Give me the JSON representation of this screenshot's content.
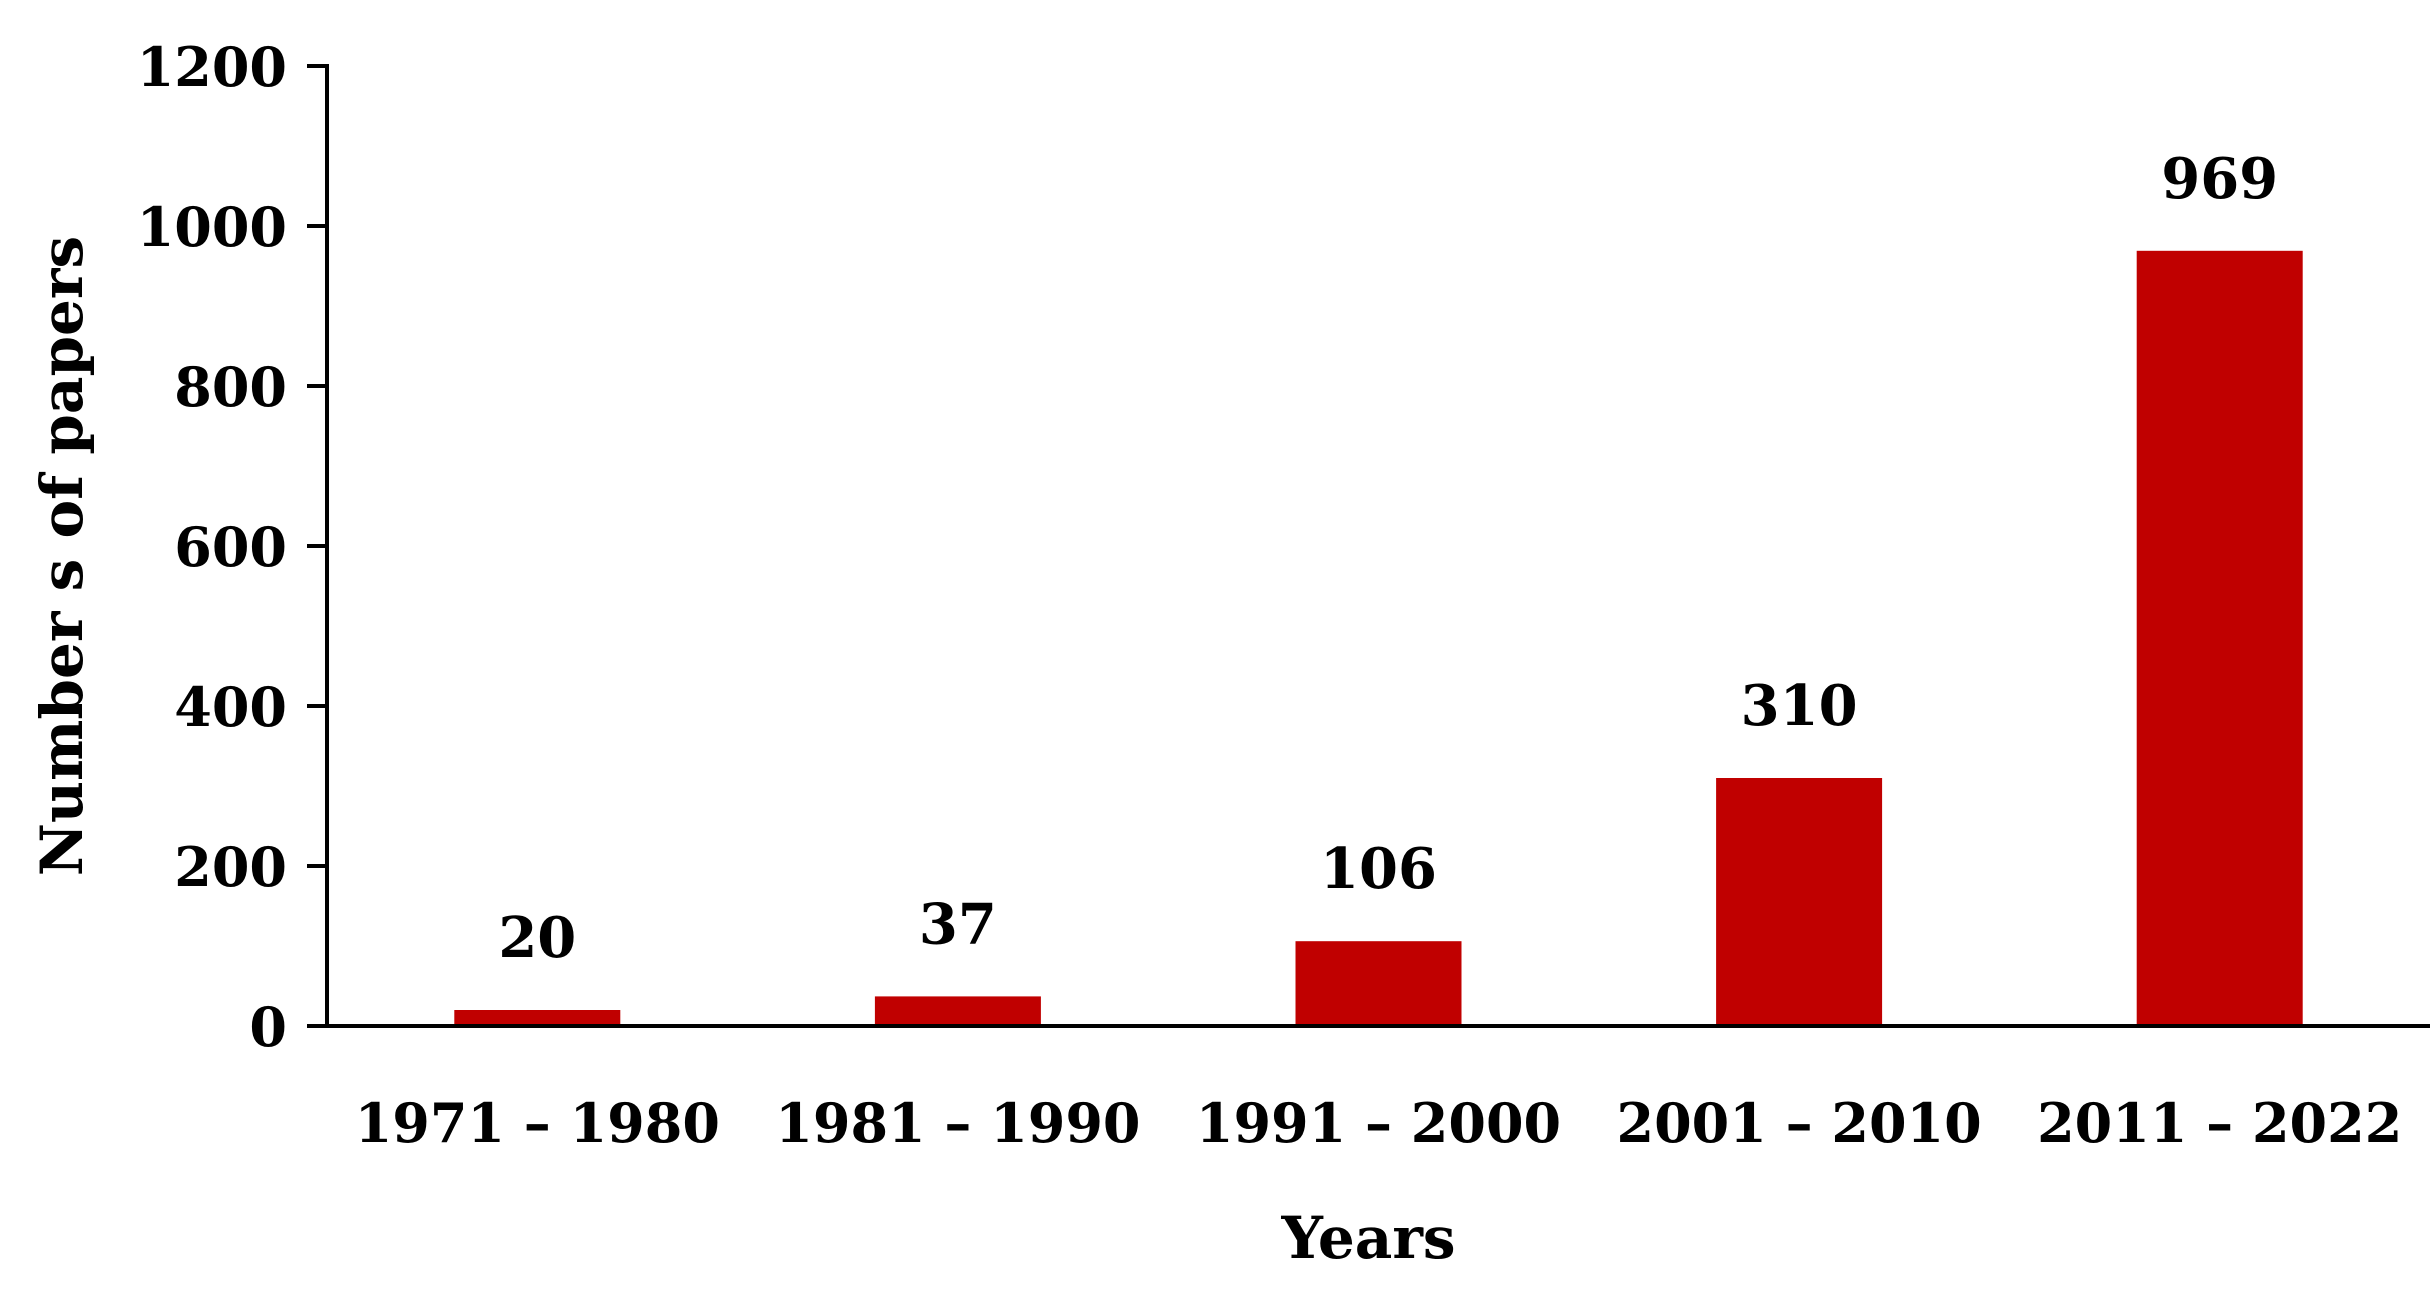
{
  "chart_data": {
    "type": "bar",
    "title": "",
    "xlabel": "Years",
    "ylabel": "Number s of papers",
    "categories": [
      "1971 – 1980",
      "1981 – 1990",
      "1991 – 2000",
      "2001 – 2010",
      "2011 – 2022"
    ],
    "values": [
      20,
      37,
      106,
      310,
      969
    ],
    "data_labels": [
      "20",
      "37",
      "106",
      "310",
      "969"
    ],
    "ylim": [
      0,
      1200
    ],
    "yticks": [
      0,
      200,
      400,
      600,
      800,
      1000,
      1200
    ],
    "ytick_labels": [
      "0",
      "200",
      "400",
      "600",
      "800",
      "1000",
      "1200"
    ],
    "grid": false,
    "legend": "none",
    "colors": {
      "bar": "#c00000",
      "axis": "#000000",
      "text": "#000000"
    }
  }
}
